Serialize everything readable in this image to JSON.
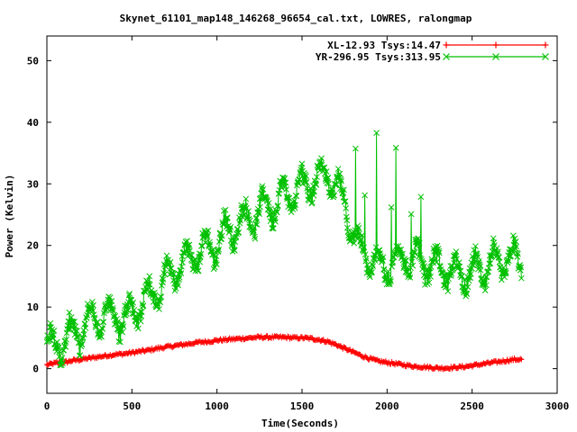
{
  "chart_data": {
    "type": "line",
    "title": "Skynet_61101_map148_146268_96654_cal.txt, LOWRES, ralongmap",
    "xlabel": "Time(Seconds)",
    "ylabel": "Power (Kelvin)",
    "xlim": [
      0,
      3000
    ],
    "ylim": [
      -4,
      54
    ],
    "xticks": [
      0,
      500,
      1000,
      1500,
      2000,
      2500,
      3000
    ],
    "yticks": [
      0,
      10,
      20,
      30,
      40,
      50
    ],
    "legend_position": "top-right",
    "series": [
      {
        "name": "XL-12.93 Tsys:14.47",
        "color": "#ff0000",
        "marker": "plus",
        "x": [
          0,
          50,
          100,
          150,
          200,
          250,
          300,
          350,
          400,
          450,
          500,
          550,
          600,
          650,
          700,
          750,
          800,
          850,
          900,
          950,
          1000,
          1050,
          1100,
          1150,
          1200,
          1250,
          1300,
          1350,
          1400,
          1450,
          1500,
          1550,
          1600,
          1650,
          1700,
          1750,
          1800,
          1850,
          1900,
          1950,
          2000,
          2050,
          2100,
          2150,
          2200,
          2250,
          2300,
          2350,
          2400,
          2450,
          2500,
          2550,
          2600,
          2650,
          2700,
          2750,
          2790
        ],
        "values": [
          0.6,
          0.9,
          1.0,
          1.3,
          1.5,
          1.7,
          1.9,
          2.1,
          2.3,
          2.4,
          2.6,
          2.8,
          3.0,
          3.3,
          3.5,
          3.7,
          3.9,
          4.1,
          4.3,
          4.4,
          4.6,
          4.7,
          4.8,
          4.9,
          5.0,
          5.1,
          5.1,
          5.1,
          5.1,
          5.0,
          5.0,
          4.9,
          4.7,
          4.4,
          3.9,
          3.3,
          2.7,
          2.1,
          1.6,
          1.2,
          1.0,
          0.8,
          0.6,
          0.4,
          0.3,
          0.2,
          0.1,
          0.1,
          0.2,
          0.3,
          0.5,
          0.7,
          0.9,
          1.1,
          1.3,
          1.5,
          1.5
        ]
      },
      {
        "name": "YR-296.95 Tsys:313.95",
        "color": "#00c000",
        "marker": "cross",
        "x": [
          0,
          50,
          100,
          150,
          200,
          250,
          300,
          350,
          400,
          450,
          500,
          550,
          600,
          650,
          700,
          750,
          800,
          850,
          900,
          950,
          1000,
          1050,
          1100,
          1150,
          1200,
          1250,
          1300,
          1350,
          1400,
          1450,
          1500,
          1550,
          1600,
          1650,
          1700,
          1750,
          1800,
          1850,
          1900,
          1950,
          2000,
          2050,
          2100,
          2150,
          2200,
          2250,
          2300,
          2350,
          2400,
          2450,
          2500,
          2550,
          2600,
          2650,
          2700,
          2750,
          2790
        ],
        "values": [
          4.0,
          3.5,
          4.5,
          5.5,
          6.5,
          7.5,
          8.5,
          9.0,
          8.5,
          8.0,
          9.5,
          10.5,
          11.5,
          13.0,
          14.5,
          16.0,
          17.0,
          18.0,
          19.0,
          19.5,
          20.5,
          22.0,
          23.0,
          24.0,
          24.5,
          25.5,
          26.5,
          27.0,
          28.0,
          28.5,
          29.5,
          30.5,
          31.0,
          31.5,
          30.0,
          27.0,
          22.0,
          19.0,
          18.0,
          17.0,
          16.5,
          17.5,
          18.0,
          17.5,
          17.5,
          17.0,
          16.5,
          16.0,
          15.5,
          15.0,
          15.5,
          16.5,
          17.0,
          17.0,
          17.5,
          18.0,
          17.0
        ]
      }
    ]
  }
}
